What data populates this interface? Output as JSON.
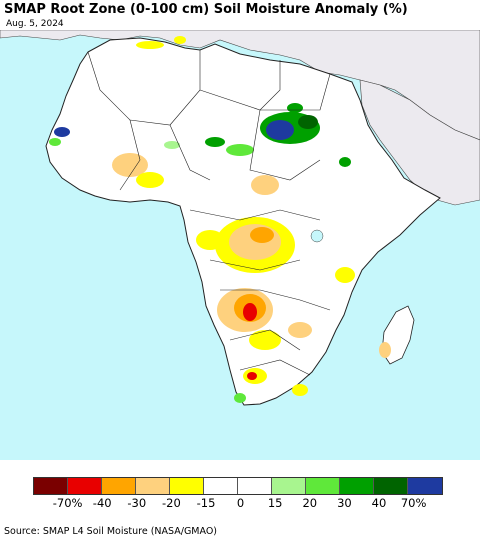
{
  "title": "SMAP Root Zone (0-100 cm) Soil Moisture Anomaly (%)",
  "date": "Aug. 5, 2024",
  "source": "Source: SMAP L4 Soil Moisture (NASA/GMAO)",
  "legend": {
    "colors": [
      "#7a0000",
      "#e80000",
      "#ffa500",
      "#fed17e",
      "#ffff00",
      "#ffffff",
      "#ffffff",
      "#a8f58f",
      "#5fe83a",
      "#00a000",
      "#006400",
      "#1e3aa0"
    ],
    "labels": [
      "-70%",
      "-40",
      "-30",
      "-20",
      "-15",
      "0",
      "15",
      "20",
      "30",
      "40",
      "70%"
    ]
  }
}
